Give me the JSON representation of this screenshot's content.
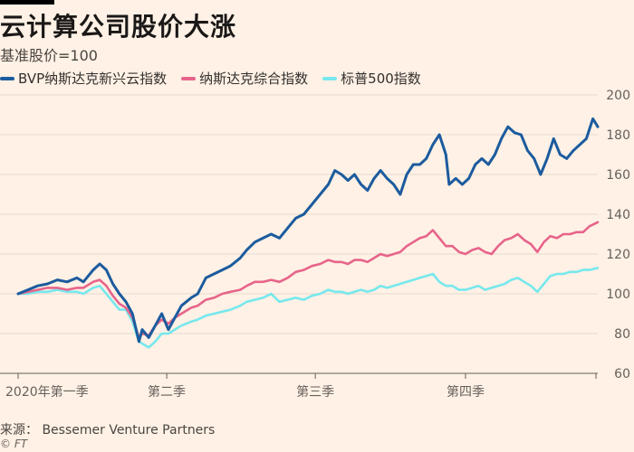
{
  "chart_data": {
    "type": "line",
    "title": "云计算公司股价大涨",
    "subtitle": "基准股价=100",
    "ylim": [
      60,
      200
    ],
    "y_ticks": [
      60,
      80,
      100,
      120,
      140,
      160,
      180,
      200
    ],
    "grid": true,
    "legend": "top-left",
    "x_labels": [
      {
        "label": "2020年第一季",
        "day": 0
      },
      {
        "label": "第二季",
        "day": 91
      },
      {
        "label": "第三季",
        "day": 182
      },
      {
        "label": "第四季",
        "day": 274
      }
    ],
    "x_range": [
      0,
      355
    ],
    "series": [
      {
        "name": "BVP纳斯达克新兴云指数",
        "color": "#1c5b9e",
        "points": [
          [
            0,
            100
          ],
          [
            6,
            102
          ],
          [
            12,
            104
          ],
          [
            18,
            105
          ],
          [
            24,
            107
          ],
          [
            30,
            106
          ],
          [
            36,
            108
          ],
          [
            40,
            106
          ],
          [
            46,
            112
          ],
          [
            50,
            115
          ],
          [
            54,
            112
          ],
          [
            58,
            105
          ],
          [
            62,
            100
          ],
          [
            66,
            96
          ],
          [
            70,
            90
          ],
          [
            74,
            76
          ],
          [
            76,
            82
          ],
          [
            80,
            78
          ],
          [
            84,
            84
          ],
          [
            88,
            90
          ],
          [
            92,
            82
          ],
          [
            96,
            88
          ],
          [
            100,
            94
          ],
          [
            106,
            98
          ],
          [
            110,
            100
          ],
          [
            115,
            108
          ],
          [
            120,
            110
          ],
          [
            125,
            112
          ],
          [
            130,
            114
          ],
          [
            136,
            118
          ],
          [
            140,
            122
          ],
          [
            145,
            126
          ],
          [
            150,
            128
          ],
          [
            155,
            130
          ],
          [
            160,
            128
          ],
          [
            165,
            133
          ],
          [
            170,
            138
          ],
          [
            175,
            140
          ],
          [
            180,
            145
          ],
          [
            185,
            150
          ],
          [
            190,
            155
          ],
          [
            194,
            162
          ],
          [
            198,
            160
          ],
          [
            202,
            157
          ],
          [
            206,
            160
          ],
          [
            210,
            155
          ],
          [
            214,
            152
          ],
          [
            218,
            158
          ],
          [
            222,
            162
          ],
          [
            226,
            158
          ],
          [
            230,
            155
          ],
          [
            234,
            150
          ],
          [
            238,
            160
          ],
          [
            242,
            165
          ],
          [
            246,
            165
          ],
          [
            250,
            168
          ],
          [
            254,
            175
          ],
          [
            258,
            180
          ],
          [
            262,
            170
          ],
          [
            264,
            155
          ],
          [
            268,
            158
          ],
          [
            272,
            155
          ],
          [
            276,
            158
          ],
          [
            280,
            165
          ],
          [
            284,
            168
          ],
          [
            288,
            165
          ],
          [
            292,
            170
          ],
          [
            296,
            178
          ],
          [
            300,
            184
          ],
          [
            304,
            181
          ],
          [
            308,
            180
          ],
          [
            312,
            172
          ],
          [
            316,
            168
          ],
          [
            320,
            160
          ],
          [
            324,
            168
          ],
          [
            328,
            178
          ],
          [
            332,
            170
          ],
          [
            336,
            168
          ],
          [
            340,
            172
          ],
          [
            344,
            175
          ],
          [
            348,
            178
          ],
          [
            352,
            188
          ],
          [
            355,
            184
          ]
        ]
      },
      {
        "name": "纳斯达克综合指数",
        "color": "#e7648b",
        "points": [
          [
            0,
            100
          ],
          [
            6,
            101
          ],
          [
            12,
            102
          ],
          [
            18,
            103
          ],
          [
            24,
            103
          ],
          [
            30,
            102
          ],
          [
            36,
            103
          ],
          [
            40,
            103
          ],
          [
            46,
            106
          ],
          [
            50,
            107
          ],
          [
            54,
            104
          ],
          [
            58,
            99
          ],
          [
            62,
            95
          ],
          [
            66,
            93
          ],
          [
            70,
            88
          ],
          [
            74,
            78
          ],
          [
            76,
            80
          ],
          [
            80,
            79
          ],
          [
            84,
            84
          ],
          [
            88,
            87
          ],
          [
            92,
            85
          ],
          [
            96,
            88
          ],
          [
            100,
            90
          ],
          [
            106,
            93
          ],
          [
            110,
            94
          ],
          [
            115,
            97
          ],
          [
            120,
            98
          ],
          [
            125,
            100
          ],
          [
            130,
            101
          ],
          [
            136,
            102
          ],
          [
            140,
            104
          ],
          [
            145,
            106
          ],
          [
            150,
            106
          ],
          [
            155,
            107
          ],
          [
            160,
            106
          ],
          [
            165,
            108
          ],
          [
            170,
            111
          ],
          [
            175,
            112
          ],
          [
            180,
            114
          ],
          [
            185,
            115
          ],
          [
            190,
            117
          ],
          [
            194,
            116
          ],
          [
            198,
            116
          ],
          [
            202,
            115
          ],
          [
            206,
            117
          ],
          [
            210,
            117
          ],
          [
            214,
            116
          ],
          [
            218,
            118
          ],
          [
            222,
            120
          ],
          [
            226,
            119
          ],
          [
            230,
            120
          ],
          [
            234,
            121
          ],
          [
            238,
            124
          ],
          [
            242,
            126
          ],
          [
            246,
            128
          ],
          [
            250,
            129
          ],
          [
            254,
            132
          ],
          [
            258,
            128
          ],
          [
            262,
            124
          ],
          [
            266,
            124
          ],
          [
            270,
            121
          ],
          [
            274,
            120
          ],
          [
            278,
            122
          ],
          [
            282,
            123
          ],
          [
            286,
            121
          ],
          [
            290,
            120
          ],
          [
            294,
            124
          ],
          [
            298,
            127
          ],
          [
            302,
            128
          ],
          [
            306,
            130
          ],
          [
            310,
            127
          ],
          [
            314,
            125
          ],
          [
            318,
            121
          ],
          [
            322,
            126
          ],
          [
            326,
            129
          ],
          [
            330,
            128
          ],
          [
            334,
            130
          ],
          [
            338,
            130
          ],
          [
            342,
            131
          ],
          [
            346,
            131
          ],
          [
            350,
            134
          ],
          [
            355,
            136
          ]
        ]
      },
      {
        "name": "标普500指数",
        "color": "#76e8ed",
        "points": [
          [
            0,
            100
          ],
          [
            6,
            100
          ],
          [
            12,
            101
          ],
          [
            18,
            101
          ],
          [
            24,
            102
          ],
          [
            30,
            101
          ],
          [
            36,
            101
          ],
          [
            40,
            100
          ],
          [
            46,
            103
          ],
          [
            50,
            104
          ],
          [
            54,
            100
          ],
          [
            58,
            96
          ],
          [
            62,
            92
          ],
          [
            66,
            92
          ],
          [
            70,
            86
          ],
          [
            74,
            76
          ],
          [
            76,
            75
          ],
          [
            80,
            73
          ],
          [
            84,
            76
          ],
          [
            88,
            80
          ],
          [
            92,
            80
          ],
          [
            96,
            82
          ],
          [
            100,
            84
          ],
          [
            106,
            86
          ],
          [
            110,
            87
          ],
          [
            115,
            89
          ],
          [
            120,
            90
          ],
          [
            125,
            91
          ],
          [
            130,
            92
          ],
          [
            136,
            94
          ],
          [
            140,
            96
          ],
          [
            145,
            97
          ],
          [
            150,
            98
          ],
          [
            155,
            100
          ],
          [
            160,
            96
          ],
          [
            165,
            97
          ],
          [
            170,
            98
          ],
          [
            175,
            97
          ],
          [
            180,
            99
          ],
          [
            185,
            100
          ],
          [
            190,
            102
          ],
          [
            194,
            101
          ],
          [
            198,
            101
          ],
          [
            202,
            100
          ],
          [
            206,
            101
          ],
          [
            210,
            102
          ],
          [
            214,
            101
          ],
          [
            218,
            102
          ],
          [
            222,
            104
          ],
          [
            226,
            103
          ],
          [
            230,
            104
          ],
          [
            234,
            105
          ],
          [
            238,
            106
          ],
          [
            242,
            107
          ],
          [
            246,
            108
          ],
          [
            250,
            109
          ],
          [
            254,
            110
          ],
          [
            258,
            106
          ],
          [
            262,
            104
          ],
          [
            266,
            104
          ],
          [
            270,
            102
          ],
          [
            274,
            102
          ],
          [
            278,
            103
          ],
          [
            282,
            104
          ],
          [
            286,
            102
          ],
          [
            290,
            103
          ],
          [
            294,
            104
          ],
          [
            298,
            105
          ],
          [
            302,
            107
          ],
          [
            306,
            108
          ],
          [
            310,
            106
          ],
          [
            314,
            104
          ],
          [
            318,
            101
          ],
          [
            322,
            105
          ],
          [
            326,
            109
          ],
          [
            330,
            110
          ],
          [
            334,
            110
          ],
          [
            338,
            111
          ],
          [
            342,
            111
          ],
          [
            346,
            112
          ],
          [
            350,
            112
          ],
          [
            355,
            113
          ]
        ]
      }
    ]
  },
  "footer": {
    "source": "来源： Bessemer Venture Partners",
    "credit": "© FT"
  }
}
